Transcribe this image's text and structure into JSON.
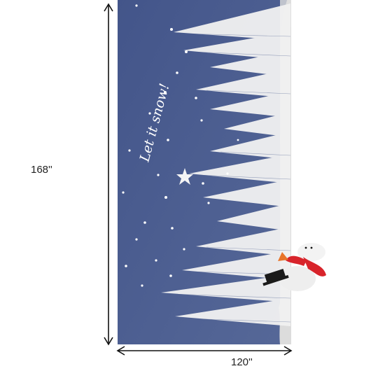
{
  "dimensions": {
    "height_label": "168''",
    "width_label": "120''"
  },
  "rug": {
    "script_text": "Let it snow!",
    "colors": {
      "night_blue": "#4b5d8e",
      "snow_gray": "#d9d9d9",
      "tree_white": "#f2f2f2",
      "scarf_red": "#d8242b",
      "hat_black": "#1a1a1a"
    },
    "icons": [
      "star-icon",
      "snowman-icon",
      "pine-tree-icon"
    ]
  }
}
